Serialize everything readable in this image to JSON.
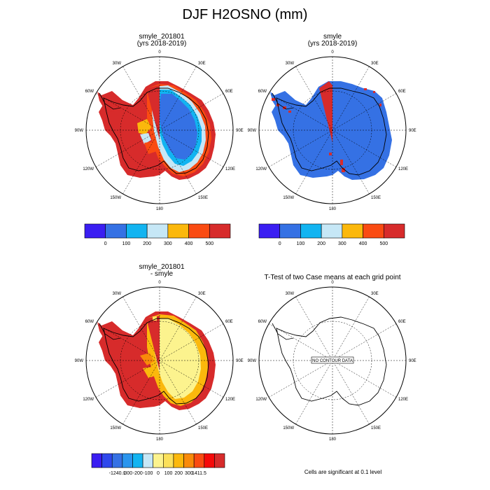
{
  "title": "DJF H2OSNO (mm)",
  "panels": [
    {
      "id": "p1",
      "title": [
        "smyle_201801",
        "(yrs 2018-2019)"
      ],
      "kind": "case"
    },
    {
      "id": "p2",
      "title": [
        "smyle",
        "(yrs 2018-2019)"
      ],
      "kind": "ref"
    },
    {
      "id": "p3",
      "title": [
        "smyle_201801",
        "- smyle"
      ],
      "kind": "diff"
    },
    {
      "id": "p4",
      "title": [
        "T-Test of two Case means at each grid point"
      ],
      "kind": "ttest",
      "message": "NO CONTOUR DATA"
    }
  ],
  "lon_labels": [
    "0",
    "30E",
    "60E",
    "90E",
    "120E",
    "150E",
    "180",
    "150W",
    "120W",
    "90W",
    "60W",
    "30W"
  ],
  "colorbars": {
    "abs": {
      "colors": [
        "#3a1ef2",
        "#3571e4",
        "#12b4f1",
        "#c6e7f6",
        "#fbb80c",
        "#fa4b12",
        "#d72b2b"
      ],
      "labels": [
        "0",
        "100",
        "200",
        "300",
        "400",
        "500"
      ]
    },
    "diff": {
      "colors": [
        "#3a1ef2",
        "#2f48ec",
        "#3571e4",
        "#2a95ee",
        "#12b4f1",
        "#c6e7f6",
        "#fcf38e",
        "#fbe05a",
        "#fbb80c",
        "#f98a0a",
        "#fa4b12",
        "#f50a0a",
        "#d72b2b"
      ],
      "labels": [
        "-1240.1",
        "-300",
        "-200",
        "-100",
        "0",
        "100",
        "200",
        "300",
        "1411.5"
      ]
    }
  },
  "footnote": "Cells are significant at 0.1 level"
}
